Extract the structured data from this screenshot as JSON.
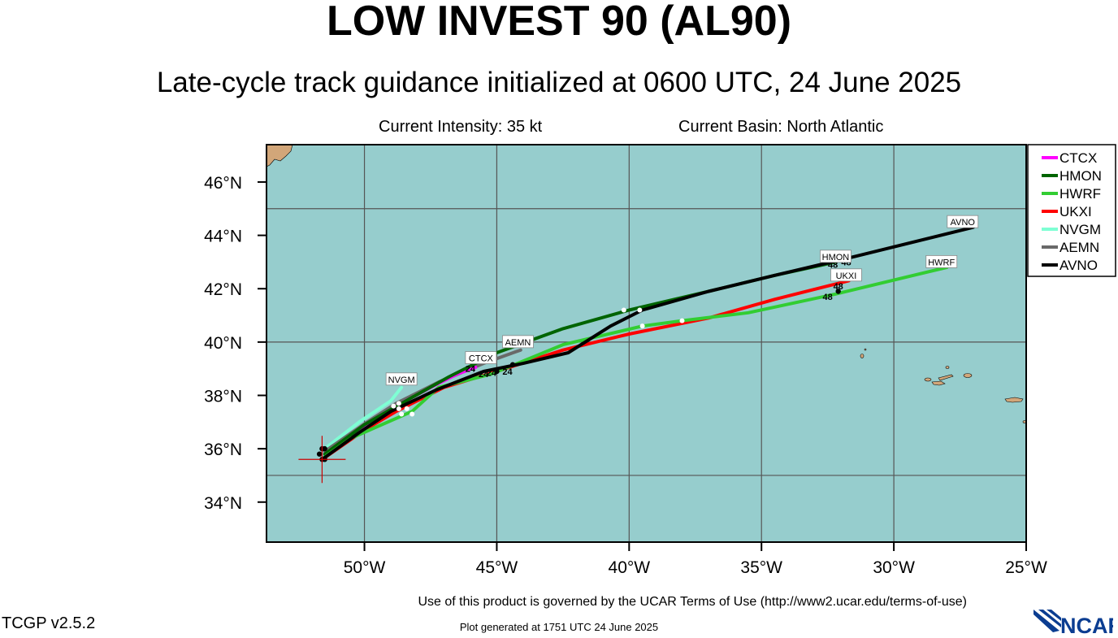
{
  "title": "LOW INVEST 90 (AL90)",
  "subtitle": "Late-cycle track guidance initialized at 0600 UTC, 24 June 2025",
  "current_intensity": "Current Intensity: 35 kt",
  "current_basin": "Current Basin: North Atlantic",
  "footer": {
    "terms": "Use of this product is governed by the UCAR Terms of Use (http://www2.ucar.edu/terms-of-use)",
    "generated": "Plot generated at 1751 UTC   24 June 2025",
    "version": "TCGP v2.5.2",
    "logo_text": "NCAR"
  },
  "map": {
    "lon_range": [
      -53.7,
      -25.0
    ],
    "lat_range": [
      32.5,
      47.4
    ],
    "ocean_color": "#96cdcd",
    "land_color": "#d2a679",
    "grid_color": "#555555",
    "lon_ticks": [
      {
        "value": -50,
        "label": "50°W"
      },
      {
        "value": -45,
        "label": "45°W"
      },
      {
        "value": -40,
        "label": "40°W"
      },
      {
        "value": -35,
        "label": "35°W"
      },
      {
        "value": -30,
        "label": "30°W"
      },
      {
        "value": -25,
        "label": "25°W"
      }
    ],
    "lat_ticks": [
      {
        "value": 34,
        "label": "34°N"
      },
      {
        "value": 36,
        "label": "36°N"
      },
      {
        "value": 38,
        "label": "38°N"
      },
      {
        "value": 40,
        "label": "40°N"
      },
      {
        "value": 42,
        "label": "42°N"
      },
      {
        "value": 44,
        "label": "44°N"
      },
      {
        "value": 46,
        "label": "46°N"
      }
    ],
    "grid_lons": [
      -50,
      -45,
      -40,
      -35,
      -30
    ],
    "grid_lats": [
      35,
      40,
      45
    ],
    "current_position": {
      "lon": -51.6,
      "lat": 35.6
    }
  },
  "legend": [
    {
      "name": "CTCX",
      "color": "#ff00ff"
    },
    {
      "name": "HMON",
      "color": "#006400"
    },
    {
      "name": "HWRF",
      "color": "#32cd32"
    },
    {
      "name": "UKXI",
      "color": "#ff0000"
    },
    {
      "name": "NVGM",
      "color": "#7fffd4"
    },
    {
      "name": "AEMN",
      "color": "#696969"
    },
    {
      "name": "AVNO",
      "color": "#000000"
    }
  ],
  "tracks": [
    {
      "name": "NVGM",
      "color": "#7fffd4",
      "points": [
        [
          -51.5,
          36.0
        ],
        [
          -50.2,
          37.0
        ],
        [
          -49.0,
          37.8
        ],
        [
          -48.6,
          38.3
        ]
      ],
      "label_at": [
        -48.6,
        38.6
      ]
    },
    {
      "name": "AEMN",
      "color": "#696969",
      "points": [
        [
          -51.5,
          35.9
        ],
        [
          -49.9,
          37.0
        ],
        [
          -48.8,
          37.7
        ],
        [
          -47.2,
          38.5
        ],
        [
          -45.5,
          39.2
        ],
        [
          -44.1,
          39.7
        ]
      ],
      "label_at": [
        -44.2,
        40.0
      ]
    },
    {
      "name": "CTCX",
      "color": "#ff00ff",
      "points": [
        [
          -51.5,
          35.8
        ],
        [
          -50.0,
          36.8
        ],
        [
          -48.8,
          37.6
        ],
        [
          -47.5,
          38.3
        ],
        [
          -46.5,
          38.8
        ],
        [
          -45.8,
          39.05
        ]
      ],
      "label_at": [
        -45.6,
        39.4
      ]
    },
    {
      "name": "HMON",
      "color": "#006400",
      "points": [
        [
          -51.5,
          35.8
        ],
        [
          -50.0,
          36.9
        ],
        [
          -48.6,
          37.7
        ],
        [
          -46.8,
          38.7
        ],
        [
          -45.0,
          39.6
        ],
        [
          -42.5,
          40.5
        ],
        [
          -40.0,
          41.2
        ],
        [
          -37.0,
          41.9
        ],
        [
          -34.5,
          42.5
        ],
        [
          -32.2,
          43.0
        ]
      ],
      "label_at": [
        -32.2,
        43.2
      ]
    },
    {
      "name": "UKXI",
      "color": "#ff0000",
      "points": [
        [
          -51.6,
          35.6
        ],
        [
          -50.0,
          36.7
        ],
        [
          -48.8,
          37.4
        ],
        [
          -47.0,
          38.3
        ],
        [
          -45.0,
          38.9
        ],
        [
          -42.5,
          39.7
        ],
        [
          -40.0,
          40.3
        ],
        [
          -37.0,
          40.9
        ],
        [
          -34.5,
          41.6
        ],
        [
          -31.7,
          42.3
        ]
      ],
      "label_at": [
        -31.8,
        42.5
      ]
    },
    {
      "name": "HWRF",
      "color": "#32cd32",
      "points": [
        [
          -51.5,
          35.7
        ],
        [
          -50.5,
          36.4
        ],
        [
          -48.2,
          37.4
        ],
        [
          -47.2,
          38.3
        ],
        [
          -45.2,
          38.8
        ],
        [
          -42.5,
          39.9
        ],
        [
          -39.5,
          40.6
        ],
        [
          -38.0,
          40.8
        ],
        [
          -35.5,
          41.1
        ],
        [
          -32.2,
          41.8
        ],
        [
          -28.0,
          42.8
        ]
      ],
      "label_at": [
        -28.2,
        43.0
      ]
    },
    {
      "name": "AVNO",
      "color": "#000000",
      "points": [
        [
          -51.6,
          35.6
        ],
        [
          -50.2,
          36.6
        ],
        [
          -49.0,
          37.4
        ],
        [
          -47.3,
          38.2
        ],
        [
          -45.5,
          38.9
        ],
        [
          -44.0,
          39.2
        ],
        [
          -42.3,
          39.6
        ],
        [
          -40.7,
          40.6
        ],
        [
          -39.5,
          41.2
        ],
        [
          -37.0,
          41.9
        ],
        [
          -34.5,
          42.5
        ],
        [
          -31.5,
          43.2
        ],
        [
          -27.0,
          44.3
        ]
      ],
      "label_at": [
        -27.4,
        44.5
      ]
    }
  ],
  "hour_labels": [
    {
      "text": "24",
      "lon": -46.0,
      "lat": 39.0
    },
    {
      "text": "24",
      "lon": -45.5,
      "lat": 38.8
    },
    {
      "text": "24",
      "lon": -45.2,
      "lat": 38.85
    },
    {
      "text": "24",
      "lon": -44.6,
      "lat": 38.9
    },
    {
      "text": "48",
      "lon": -32.3,
      "lat": 42.9
    },
    {
      "text": "48",
      "lon": -31.8,
      "lat": 43.0
    },
    {
      "text": "48",
      "lon": -32.1,
      "lat": 42.1
    },
    {
      "text": "48",
      "lon": -32.5,
      "lat": 41.7
    }
  ],
  "white_dots": [
    [
      -40.2,
      41.2
    ],
    [
      -39.6,
      41.2
    ],
    [
      -39.5,
      40.6
    ],
    [
      -38.0,
      40.8
    ],
    [
      -48.9,
      37.6
    ],
    [
      -48.7,
      37.5
    ],
    [
      -48.4,
      37.5
    ],
    [
      -48.6,
      37.3
    ],
    [
      -48.2,
      37.3
    ],
    [
      -48.7,
      37.7
    ]
  ],
  "black_dots": [
    [
      -51.6,
      35.6
    ],
    [
      -51.5,
      35.6
    ],
    [
      -51.7,
      35.8
    ],
    [
      -51.6,
      36.0
    ],
    [
      -51.5,
      36.0
    ],
    [
      -45.0,
      38.9
    ],
    [
      -44.4,
      39.15
    ],
    [
      -32.1,
      41.9
    ]
  ]
}
